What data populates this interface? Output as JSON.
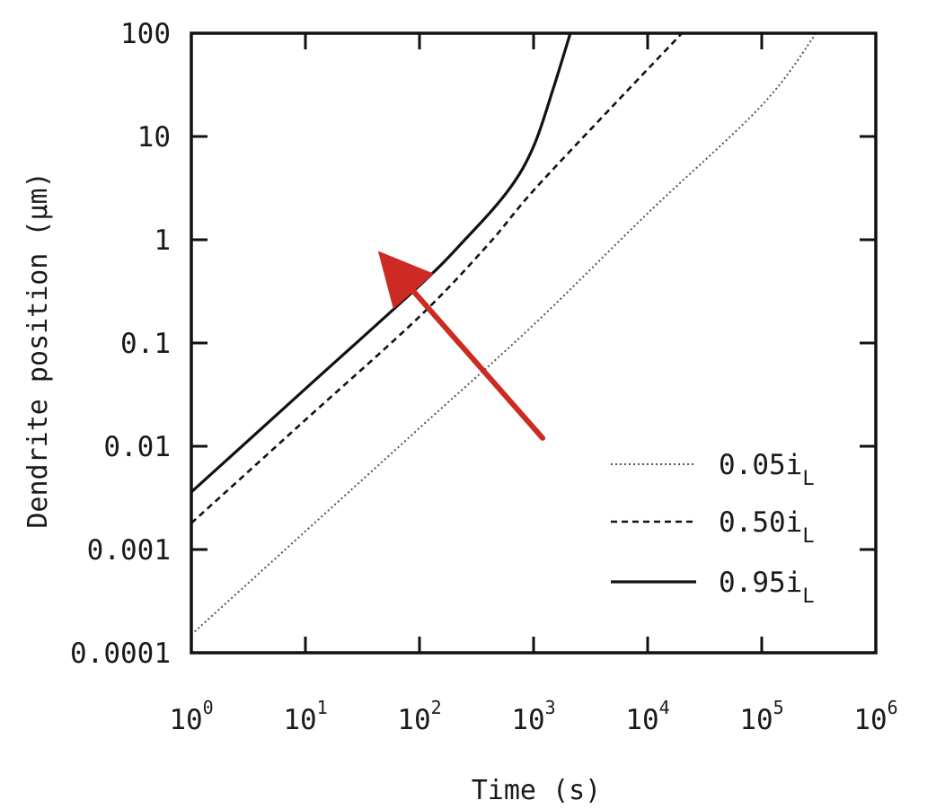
{
  "chart_data": {
    "type": "line",
    "xlabel": "Time (s)",
    "ylabel": "Dendrite position (µm)",
    "x_scale": "log",
    "y_scale": "log",
    "xlim": [
      1,
      1000000
    ],
    "ylim": [
      0.0001,
      100
    ],
    "grid": false,
    "legend_position": "bottom-right",
    "x_ticks": [
      {
        "base": "10",
        "exp": "0",
        "value": 1
      },
      {
        "base": "10",
        "exp": "1",
        "value": 10
      },
      {
        "base": "10",
        "exp": "2",
        "value": 100
      },
      {
        "base": "10",
        "exp": "3",
        "value": 1000
      },
      {
        "base": "10",
        "exp": "4",
        "value": 10000
      },
      {
        "base": "10",
        "exp": "5",
        "value": 100000
      },
      {
        "base": "10",
        "exp": "6",
        "value": 1000000
      }
    ],
    "y_ticks": [
      {
        "label": "100",
        "value": 100
      },
      {
        "label": "10",
        "value": 10
      },
      {
        "label": "1",
        "value": 1
      },
      {
        "label": "0.1",
        "value": 0.1
      },
      {
        "label": "0.01",
        "value": 0.01
      },
      {
        "label": "0.001",
        "value": 0.001
      },
      {
        "label": "0.0001",
        "value": 0.0001
      }
    ],
    "series": [
      {
        "name": "0.05i",
        "name_subscript": "L",
        "style": "dotted",
        "color": "#555555",
        "points": [
          [
            1,
            0.00015
          ],
          [
            10,
            0.0015
          ],
          [
            100,
            0.015
          ],
          [
            1000,
            0.15
          ],
          [
            10000,
            1.8
          ],
          [
            100000,
            20
          ],
          [
            300000,
            100
          ]
        ]
      },
      {
        "name": "0.50i",
        "name_subscript": "L",
        "style": "dashed",
        "color": "#111111",
        "points": [
          [
            1,
            0.0018
          ],
          [
            10,
            0.018
          ],
          [
            100,
            0.18
          ],
          [
            400,
            0.9
          ],
          [
            1000,
            3
          ],
          [
            5000,
            20
          ],
          [
            20000,
            100
          ]
        ]
      },
      {
        "name": "0.95i",
        "name_subscript": "L",
        "style": "solid",
        "color": "#111111",
        "points": [
          [
            1,
            0.0036
          ],
          [
            10,
            0.036
          ],
          [
            100,
            0.36
          ],
          [
            250,
            1
          ],
          [
            600,
            3
          ],
          [
            1000,
            8
          ],
          [
            1500,
            30
          ],
          [
            2100,
            100
          ]
        ]
      }
    ],
    "annotations": [
      {
        "type": "arrow",
        "color": "#cc2a22",
        "from": [
          1200,
          0.012
        ],
        "to": [
          50,
          0.65
        ]
      }
    ]
  }
}
